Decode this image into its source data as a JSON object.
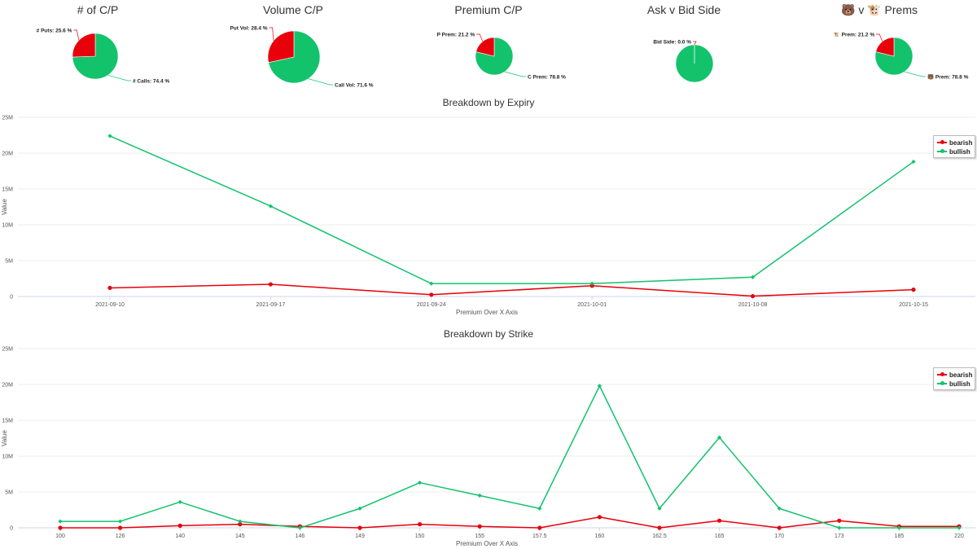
{
  "pies": [
    {
      "title": "# of C/P",
      "slices": [
        {
          "label": "# Puts: 25.6 %",
          "value": 25.6,
          "color": "#e8000b"
        },
        {
          "label": "# Calls: 74.4 %",
          "value": 74.4,
          "color": "#12c36c"
        }
      ]
    },
    {
      "title": "Volume C/P",
      "slices": [
        {
          "label": "Put Vol: 28.4 %",
          "value": 28.4,
          "color": "#e8000b"
        },
        {
          "label": "Call Vol: 71.6 %",
          "value": 71.6,
          "color": "#12c36c"
        }
      ]
    },
    {
      "title": "Premium C/P",
      "slices": [
        {
          "label": "P Prem: 21.2 %",
          "value": 21.2,
          "color": "#e8000b"
        },
        {
          "label": "C Prem: 78.8 %",
          "value": 78.8,
          "color": "#12c36c"
        }
      ]
    },
    {
      "title": "Ask v Bid Side",
      "slices": [
        {
          "label": "Bid Side: 0.0 %",
          "value": 0.0,
          "color": "#e8000b"
        },
        {
          "label": "",
          "value": 100.0,
          "color": "#12c36c"
        }
      ]
    },
    {
      "title": "🐻 v 🐮 Prems",
      "slices": [
        {
          "label": "🐮 Prem: 21.2 %",
          "value": 21.2,
          "color": "#e8000b"
        },
        {
          "label": "🐻 Prem: 78.8 %",
          "value": 78.8,
          "color": "#12c36c"
        }
      ]
    }
  ],
  "chart_data": [
    {
      "type": "line",
      "title": "Breakdown by Expiry",
      "xlabel": "Premium Over X Axis",
      "ylabel": "Value",
      "categories": [
        "2021-09-10",
        "2021-09-17",
        "2021-09-24",
        "2021-10-01",
        "2021-10-08",
        "2021-10-15"
      ],
      "yticks": [
        "0",
        "5M",
        "10M",
        "15M",
        "20M",
        "25M"
      ],
      "ylim": [
        0,
        25000000
      ],
      "legend": "top-right",
      "series": [
        {
          "name": "bearish",
          "color": "#e8000b",
          "values": [
            1200000,
            1700000,
            250000,
            1500000,
            50000,
            950000
          ]
        },
        {
          "name": "bullish",
          "color": "#12c36c",
          "values": [
            22400000,
            12600000,
            1800000,
            1800000,
            2700000,
            18800000
          ]
        }
      ]
    },
    {
      "type": "line",
      "title": "Breakdown by Strike",
      "xlabel": "Premium Over X Axis",
      "ylabel": "Value",
      "categories": [
        "100",
        "126",
        "140",
        "145",
        "146",
        "149",
        "150",
        "155",
        "157.5",
        "160",
        "162.5",
        "165",
        "170",
        "173",
        "185",
        "220"
      ],
      "yticks": [
        "0",
        "5M",
        "10M",
        "15M",
        "20M",
        "25M"
      ],
      "ylim": [
        0,
        25000000
      ],
      "legend": "top-right",
      "series": [
        {
          "name": "bearish",
          "color": "#e8000b",
          "values": [
            0,
            0,
            300000,
            500000,
            200000,
            0,
            500000,
            200000,
            0,
            1500000,
            0,
            1000000,
            0,
            1000000,
            200000,
            200000
          ]
        },
        {
          "name": "bullish",
          "color": "#12c36c",
          "values": [
            900000,
            900000,
            3600000,
            900000,
            0,
            2700000,
            6300000,
            4500000,
            2700000,
            19800000,
            2700000,
            12600000,
            2700000,
            0,
            0,
            0
          ]
        }
      ]
    }
  ]
}
